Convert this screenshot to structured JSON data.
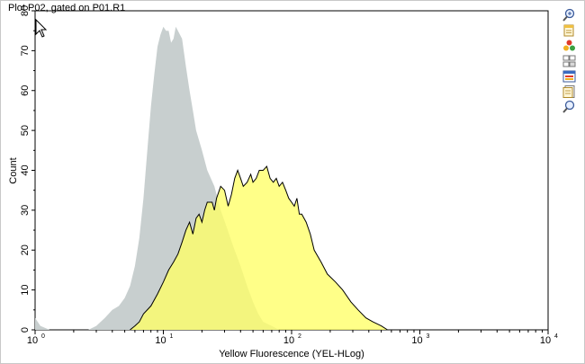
{
  "window": {
    "title": "Plot P02, gated on P01.R1"
  },
  "toolbar": {
    "tools": [
      {
        "name": "zoom-in-tool",
        "icon": "magnifier-plus-icon"
      },
      {
        "name": "copy-tool",
        "icon": "copy-page-icon"
      },
      {
        "name": "color-tool",
        "icon": "color-balls-icon"
      },
      {
        "name": "layout-tool",
        "icon": "layout-grid-icon"
      },
      {
        "name": "window-tool",
        "icon": "window-icon"
      },
      {
        "name": "document-tool",
        "icon": "document-icon"
      },
      {
        "name": "zoom-out-tool",
        "icon": "magnifier-icon"
      }
    ]
  },
  "chart_data": {
    "type": "area",
    "title": "Plot P02, gated on P01.R1",
    "xlabel": "Yellow Fluorescence (YEL-HLog)",
    "ylabel": "Count",
    "x_scale": "log",
    "xlim": [
      1,
      10000
    ],
    "ylim": [
      0,
      80
    ],
    "x_ticks": [
      {
        "base": "10",
        "exp": "0"
      },
      {
        "base": "10",
        "exp": "1"
      },
      {
        "base": "10",
        "exp": "2"
      },
      {
        "base": "10",
        "exp": "3"
      },
      {
        "base": "10",
        "exp": "4"
      }
    ],
    "y_ticks": [
      "0",
      "10",
      "20",
      "30",
      "40",
      "50",
      "60",
      "70",
      "80"
    ],
    "grid": false,
    "series": [
      {
        "color": "#c8cfcf",
        "points": [
          [
            1.0,
            3
          ],
          [
            1.1,
            1
          ],
          [
            1.3,
            0
          ],
          [
            2.6,
            0
          ],
          [
            3.0,
            1
          ],
          [
            3.5,
            3
          ],
          [
            4.0,
            5
          ],
          [
            4.5,
            6
          ],
          [
            5.0,
            8
          ],
          [
            5.5,
            11
          ],
          [
            6.0,
            16
          ],
          [
            6.5,
            23
          ],
          [
            7.0,
            33
          ],
          [
            7.5,
            45
          ],
          [
            8.0,
            56
          ],
          [
            8.5,
            64
          ],
          [
            9.0,
            71
          ],
          [
            9.5,
            74
          ],
          [
            10.0,
            76
          ],
          [
            10.5,
            75
          ],
          [
            11.0,
            75
          ],
          [
            11.5,
            72
          ],
          [
            12.0,
            73
          ],
          [
            12.5,
            76
          ],
          [
            13.0,
            75
          ],
          [
            14.0,
            73
          ],
          [
            15.0,
            66
          ],
          [
            16.0,
            60
          ],
          [
            17.0,
            55
          ],
          [
            18.0,
            50
          ],
          [
            20.0,
            45
          ],
          [
            22.0,
            40
          ],
          [
            25.0,
            36
          ],
          [
            28.0,
            30
          ],
          [
            31.0,
            26
          ],
          [
            35.0,
            21
          ],
          [
            40.0,
            16
          ],
          [
            45.0,
            11
          ],
          [
            50.0,
            7
          ],
          [
            55.0,
            4
          ],
          [
            60.0,
            2
          ],
          [
            70.0,
            1
          ],
          [
            80.0,
            0
          ]
        ]
      },
      {
        "color": "#ffff66",
        "points": [
          [
            5.5,
            0
          ],
          [
            6.0,
            1
          ],
          [
            6.5,
            2
          ],
          [
            7.0,
            4
          ],
          [
            8.0,
            6
          ],
          [
            9.0,
            9
          ],
          [
            10.0,
            12
          ],
          [
            11.0,
            15
          ],
          [
            12.0,
            17
          ],
          [
            13.0,
            19
          ],
          [
            14.0,
            22
          ],
          [
            15.0,
            25
          ],
          [
            16.0,
            27
          ],
          [
            17.0,
            24
          ],
          [
            18.0,
            28
          ],
          [
            19.0,
            29
          ],
          [
            20.0,
            27
          ],
          [
            21.0,
            30
          ],
          [
            22.0,
            32
          ],
          [
            24.0,
            32
          ],
          [
            25.0,
            30
          ],
          [
            26.0,
            33
          ],
          [
            28.0,
            36
          ],
          [
            30.0,
            35
          ],
          [
            32.0,
            31
          ],
          [
            34.0,
            34
          ],
          [
            36.0,
            38
          ],
          [
            38.0,
            40
          ],
          [
            40.0,
            38
          ],
          [
            42.0,
            36
          ],
          [
            45.0,
            37
          ],
          [
            48.0,
            39
          ],
          [
            50.0,
            37
          ],
          [
            53.0,
            38
          ],
          [
            56.0,
            40
          ],
          [
            60.0,
            40
          ],
          [
            64.0,
            41
          ],
          [
            68.0,
            38
          ],
          [
            72.0,
            37
          ],
          [
            76.0,
            38
          ],
          [
            80.0,
            36
          ],
          [
            85.0,
            37
          ],
          [
            90.0,
            35
          ],
          [
            95.0,
            33
          ],
          [
            100.0,
            32
          ],
          [
            105.0,
            31
          ],
          [
            110.0,
            33
          ],
          [
            115.0,
            29
          ],
          [
            120.0,
            29
          ],
          [
            130.0,
            27
          ],
          [
            140.0,
            24
          ],
          [
            150.0,
            20
          ],
          [
            170.0,
            17
          ],
          [
            190.0,
            14
          ],
          [
            220.0,
            12
          ],
          [
            250.0,
            10
          ],
          [
            290.0,
            7
          ],
          [
            330.0,
            5
          ],
          [
            380.0,
            3
          ],
          [
            430.0,
            2
          ],
          [
            500.0,
            1
          ],
          [
            560.0,
            0
          ]
        ]
      }
    ]
  }
}
